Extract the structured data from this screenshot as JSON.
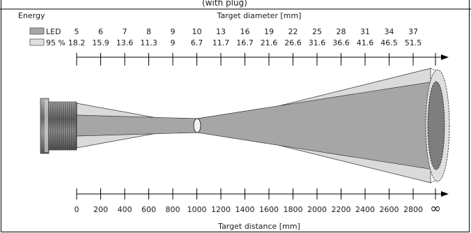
{
  "header": {
    "title_fragment": "(with plug)"
  },
  "labels": {
    "energy": "Energy",
    "target_diameter": "Target diameter [mm]",
    "target_distance": "Target distance [mm]"
  },
  "legend": {
    "led_label": "LED",
    "ninety_five_label": "95 %"
  },
  "diameters_led": [
    "5",
    "6",
    "7",
    "8",
    "9",
    "10",
    "13",
    "16",
    "19",
    "22",
    "25",
    "28",
    "31",
    "34",
    "37"
  ],
  "diameters_95": [
    "18.2",
    "15.9",
    "13.6",
    "11.3",
    "9",
    "6.7",
    "11.7",
    "16.7",
    "21.6",
    "26.6",
    "31.6",
    "36.6",
    "41.6",
    "46.5",
    "51.5"
  ],
  "distances": [
    "0",
    "200",
    "400",
    "600",
    "800",
    "1000",
    "1200",
    "1400",
    "1600",
    "1800",
    "2000",
    "2200",
    "2400",
    "2600",
    "2800"
  ],
  "infinity_symbol": "∞",
  "colors": {
    "led_cone": "#a6a6a6",
    "ninety_five_cone": "#d9d9d9",
    "axis": "#000000",
    "sensor_body": "#7a7a7a"
  }
}
